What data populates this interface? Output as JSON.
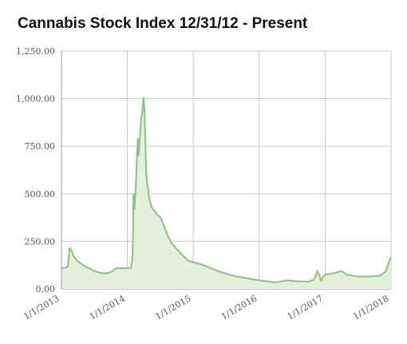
{
  "title": "Cannabis Stock Index 12/31/12 - Present",
  "colors": {
    "line": "#8cc27e",
    "fill": "#e3f0db",
    "grid": "#c8c8c8",
    "axis": "#9a9a9a"
  },
  "chart_data": {
    "type": "area",
    "title": "Cannabis Stock Index 12/31/12 - Present",
    "xlabel": "",
    "ylabel": "",
    "xlim": [
      "2013-01-01",
      "2018-01-01"
    ],
    "ylim": [
      0,
      1250
    ],
    "grid": true,
    "legend": "none",
    "y_ticks": [
      0,
      250,
      500,
      750,
      1000,
      1250
    ],
    "y_tick_labels": [
      "0.00",
      "250.00",
      "500.00",
      "750.00",
      "1,000.00",
      "1,250.00"
    ],
    "x_ticks": [
      "2013-01-01",
      "2014-01-01",
      "2015-01-01",
      "2016-01-01",
      "2017-01-01",
      "2018-01-01"
    ],
    "x_tick_labels": [
      "1/1/2013",
      "1/1/2014",
      "1/1/2015",
      "1/1/2016",
      "1/1/2017",
      "1/1/2018"
    ],
    "series": [
      {
        "points": [
          [
            "2013-01-01",
            110
          ],
          [
            "2013-01-25",
            112
          ],
          [
            "2013-02-05",
            118
          ],
          [
            "2013-02-15",
            215
          ],
          [
            "2013-02-25",
            205
          ],
          [
            "2013-03-10",
            170
          ],
          [
            "2013-04-01",
            145
          ],
          [
            "2013-05-01",
            125
          ],
          [
            "2013-06-01",
            110
          ],
          [
            "2013-07-01",
            95
          ],
          [
            "2013-08-01",
            85
          ],
          [
            "2013-09-01",
            82
          ],
          [
            "2013-10-01",
            88
          ],
          [
            "2013-11-01",
            110
          ],
          [
            "2013-12-01",
            108
          ],
          [
            "2014-01-01",
            110
          ],
          [
            "2014-01-20",
            110
          ],
          [
            "2014-01-28",
            150
          ],
          [
            "2014-02-01",
            260
          ],
          [
            "2014-02-04",
            500
          ],
          [
            "2014-02-10",
            420
          ],
          [
            "2014-02-18",
            560
          ],
          [
            "2014-02-24",
            720
          ],
          [
            "2014-03-01",
            790
          ],
          [
            "2014-03-04",
            700
          ],
          [
            "2014-03-09",
            760
          ],
          [
            "2014-03-14",
            830
          ],
          [
            "2014-03-19",
            900
          ],
          [
            "2014-03-24",
            920
          ],
          [
            "2014-03-29",
            980
          ],
          [
            "2014-04-01",
            1005
          ],
          [
            "2014-04-05",
            960
          ],
          [
            "2014-04-10",
            820
          ],
          [
            "2014-04-15",
            620
          ],
          [
            "2014-04-20",
            560
          ],
          [
            "2014-04-25",
            540
          ],
          [
            "2014-05-01",
            480
          ],
          [
            "2014-05-15",
            430
          ],
          [
            "2014-06-01",
            410
          ],
          [
            "2014-06-15",
            390
          ],
          [
            "2014-07-01",
            380
          ],
          [
            "2014-07-15",
            350
          ],
          [
            "2014-08-01",
            310
          ],
          [
            "2014-08-15",
            275
          ],
          [
            "2014-09-01",
            245
          ],
          [
            "2014-10-01",
            210
          ],
          [
            "2014-11-01",
            180
          ],
          [
            "2014-12-01",
            150
          ],
          [
            "2015-01-01",
            140
          ],
          [
            "2015-03-01",
            125
          ],
          [
            "2015-05-01",
            100
          ],
          [
            "2015-07-01",
            80
          ],
          [
            "2015-09-01",
            65
          ],
          [
            "2015-11-01",
            55
          ],
          [
            "2016-01-01",
            45
          ],
          [
            "2016-03-01",
            38
          ],
          [
            "2016-04-01",
            35
          ],
          [
            "2016-06-01",
            45
          ],
          [
            "2016-08-01",
            40
          ],
          [
            "2016-10-01",
            38
          ],
          [
            "2016-11-01",
            50
          ],
          [
            "2016-11-20",
            95
          ],
          [
            "2016-12-01",
            70
          ],
          [
            "2016-12-10",
            40
          ],
          [
            "2016-12-20",
            65
          ],
          [
            "2017-01-01",
            75
          ],
          [
            "2017-02-01",
            80
          ],
          [
            "2017-03-01",
            85
          ],
          [
            "2017-04-01",
            95
          ],
          [
            "2017-05-01",
            75
          ],
          [
            "2017-07-01",
            65
          ],
          [
            "2017-09-01",
            65
          ],
          [
            "2017-11-01",
            70
          ],
          [
            "2017-12-01",
            90
          ],
          [
            "2017-12-20",
            140
          ],
          [
            "2018-01-01",
            165
          ]
        ]
      }
    ]
  }
}
